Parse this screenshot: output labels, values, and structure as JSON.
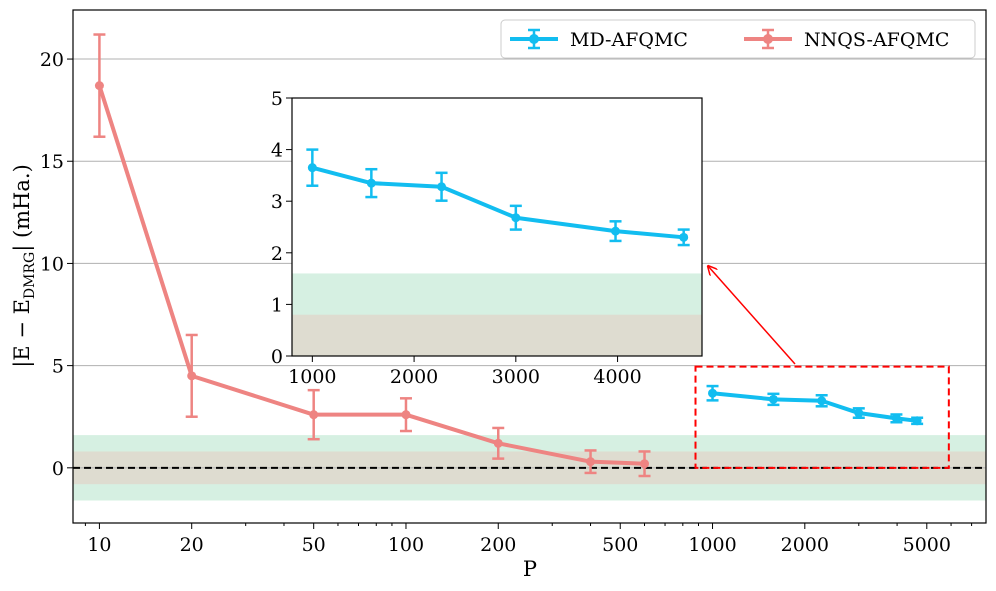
{
  "chart_data": {
    "type": "line",
    "xlabel": "P",
    "ylabel": "|E − E",
    "ylabel_sub": "DMRG",
    "ylabel_tail": "| (mHa.)",
    "xscale": "log",
    "xlim": [
      8.2,
      7800
    ],
    "ylim": [
      -2.7,
      22.4
    ],
    "x_ticks": [
      10,
      20,
      50,
      100,
      200,
      500,
      1000,
      2000,
      5000
    ],
    "x_tick_labels": [
      "10",
      "20",
      "50",
      "100",
      "200",
      "500",
      "1000",
      "2000",
      "5000"
    ],
    "y_ticks": [
      0,
      5,
      10,
      15,
      20
    ],
    "y_tick_labels": [
      "0",
      "5",
      "10",
      "15",
      "20"
    ],
    "grid": "horizontal",
    "reference_line": {
      "y": 0,
      "style": "dashed"
    },
    "bands": [
      {
        "name": "green",
        "y0": -1.6,
        "y1": 1.6,
        "color": "#d6f0e2"
      },
      {
        "name": "gray",
        "y0": -0.8,
        "y1": 0.8,
        "color": "#dedcd0"
      }
    ],
    "legend": {
      "location": "upper right",
      "ncol": 2
    },
    "series": [
      {
        "name": "MD-AFQMC",
        "color": "#12bdf0",
        "x": [
          1000,
          1580,
          2270,
          3000,
          3980,
          4650
        ],
        "y": [
          3.65,
          3.35,
          3.28,
          2.68,
          2.42,
          2.3
        ],
        "err": [
          0.35,
          0.27,
          0.27,
          0.23,
          0.19,
          0.15
        ]
      },
      {
        "name": "NNQS-AFQMC",
        "color": "#ee8482",
        "x": [
          10,
          20,
          50,
          100,
          200,
          400,
          600
        ],
        "y": [
          18.7,
          4.5,
          2.6,
          2.6,
          1.2,
          0.3,
          0.2
        ],
        "err": [
          2.5,
          2.0,
          1.2,
          0.8,
          0.75,
          0.55,
          0.6
        ]
      }
    ],
    "highlight_box": {
      "x0": 880,
      "x1": 5900,
      "y0": 0,
      "y1": 4.95,
      "color": "#ff0000"
    },
    "inset": {
      "series": "MD-AFQMC",
      "xscale": "linear",
      "xlim": [
        800,
        4830
      ],
      "ylim": [
        0,
        5
      ],
      "x_ticks": [
        1000,
        2000,
        3000,
        4000
      ],
      "x_tick_labels": [
        "1000",
        "2000",
        "3000",
        "4000"
      ],
      "y_ticks": [
        0,
        1,
        2,
        3,
        4,
        5
      ],
      "y_tick_labels": [
        "0",
        "1",
        "2",
        "3",
        "4",
        "5"
      ]
    }
  }
}
